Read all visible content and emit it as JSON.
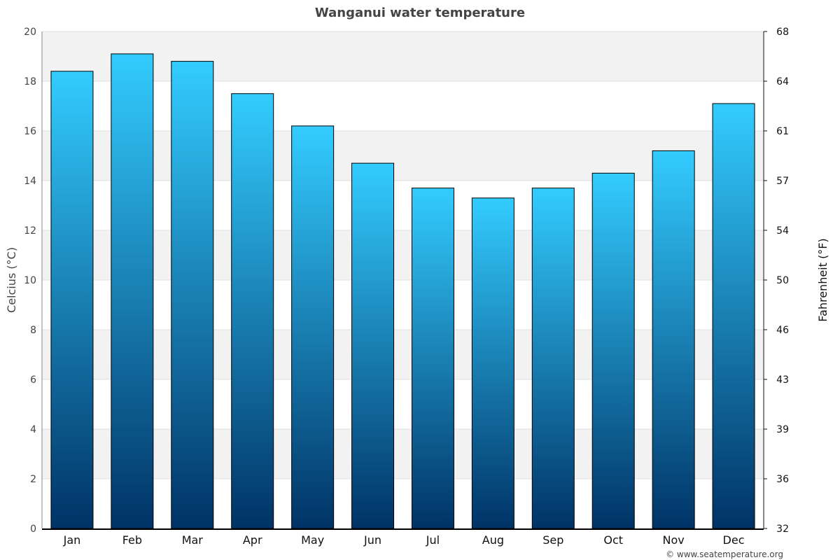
{
  "chart_data": {
    "type": "bar",
    "title": "Wanganui water temperature",
    "ylabel": "Celcius (°C)",
    "y2label": "Fahrenheit (°F)",
    "xlabel": "",
    "categories": [
      "Jan",
      "Feb",
      "Mar",
      "Apr",
      "May",
      "Jun",
      "Jul",
      "Aug",
      "Sep",
      "Oct",
      "Nov",
      "Dec"
    ],
    "values": [
      18.4,
      19.1,
      18.8,
      17.5,
      16.2,
      14.7,
      13.7,
      13.3,
      13.7,
      14.3,
      15.2,
      17.1
    ],
    "ylim": [
      0,
      20
    ],
    "yticks": [
      0,
      2,
      4,
      6,
      8,
      10,
      12,
      14,
      16,
      18,
      20
    ],
    "y2ticks": [
      "32",
      "36",
      "39",
      "43",
      "46",
      "50",
      "54",
      "57",
      "61",
      "64",
      "68"
    ],
    "grid": true,
    "colors": {
      "bar_top": "#33ccff",
      "bar_bottom": "#003366",
      "band": "#f2f2f2"
    }
  },
  "credit": "© www.seatemperature.org"
}
